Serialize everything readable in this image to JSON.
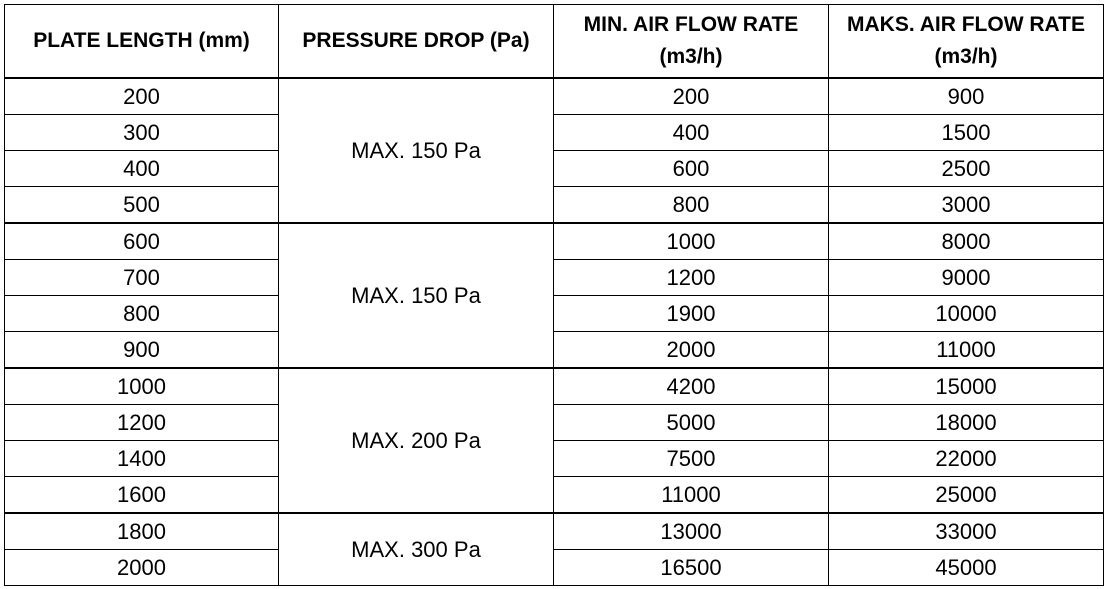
{
  "headers": [
    "PLATE LENGTH (mm)",
    "PRESSURE DROP (Pa)",
    "MIN. AIR FLOW RATE (m3/h)",
    "MAKS. AIR FLOW RATE (m3/h)"
  ],
  "header_lines": {
    "c1": [
      "PLATE LENGTH (mm)"
    ],
    "c2": [
      "PRESSURE DROP (Pa)"
    ],
    "c3": [
      "MIN. AIR FLOW RATE",
      "(m3/h)"
    ],
    "c4": [
      "MAKS. AIR FLOW RATE",
      "(m3/h)"
    ]
  },
  "groups": [
    {
      "pressure": "MAX. 150 Pa",
      "rows": [
        {
          "length": "200",
          "min": "200",
          "max": "900"
        },
        {
          "length": "300",
          "min": "400",
          "max": "1500"
        },
        {
          "length": "400",
          "min": "600",
          "max": "2500"
        },
        {
          "length": "500",
          "min": "800",
          "max": "3000"
        }
      ]
    },
    {
      "pressure": "MAX. 150 Pa",
      "rows": [
        {
          "length": "600",
          "min": "1000",
          "max": "8000"
        },
        {
          "length": "700",
          "min": "1200",
          "max": "9000"
        },
        {
          "length": "800",
          "min": "1900",
          "max": "10000"
        },
        {
          "length": "900",
          "min": "2000",
          "max": "11000"
        }
      ]
    },
    {
      "pressure": "MAX. 200 Pa",
      "rows": [
        {
          "length": "1000",
          "min": "4200",
          "max": "15000"
        },
        {
          "length": "1200",
          "min": "5000",
          "max": "18000"
        },
        {
          "length": "1400",
          "min": "7500",
          "max": "22000"
        },
        {
          "length": "1600",
          "min": "11000",
          "max": "25000"
        }
      ]
    },
    {
      "pressure": "MAX. 300 Pa",
      "rows": [
        {
          "length": "1800",
          "min": "13000",
          "max": "33000"
        },
        {
          "length": "2000",
          "min": "16500",
          "max": "45000"
        }
      ]
    }
  ]
}
